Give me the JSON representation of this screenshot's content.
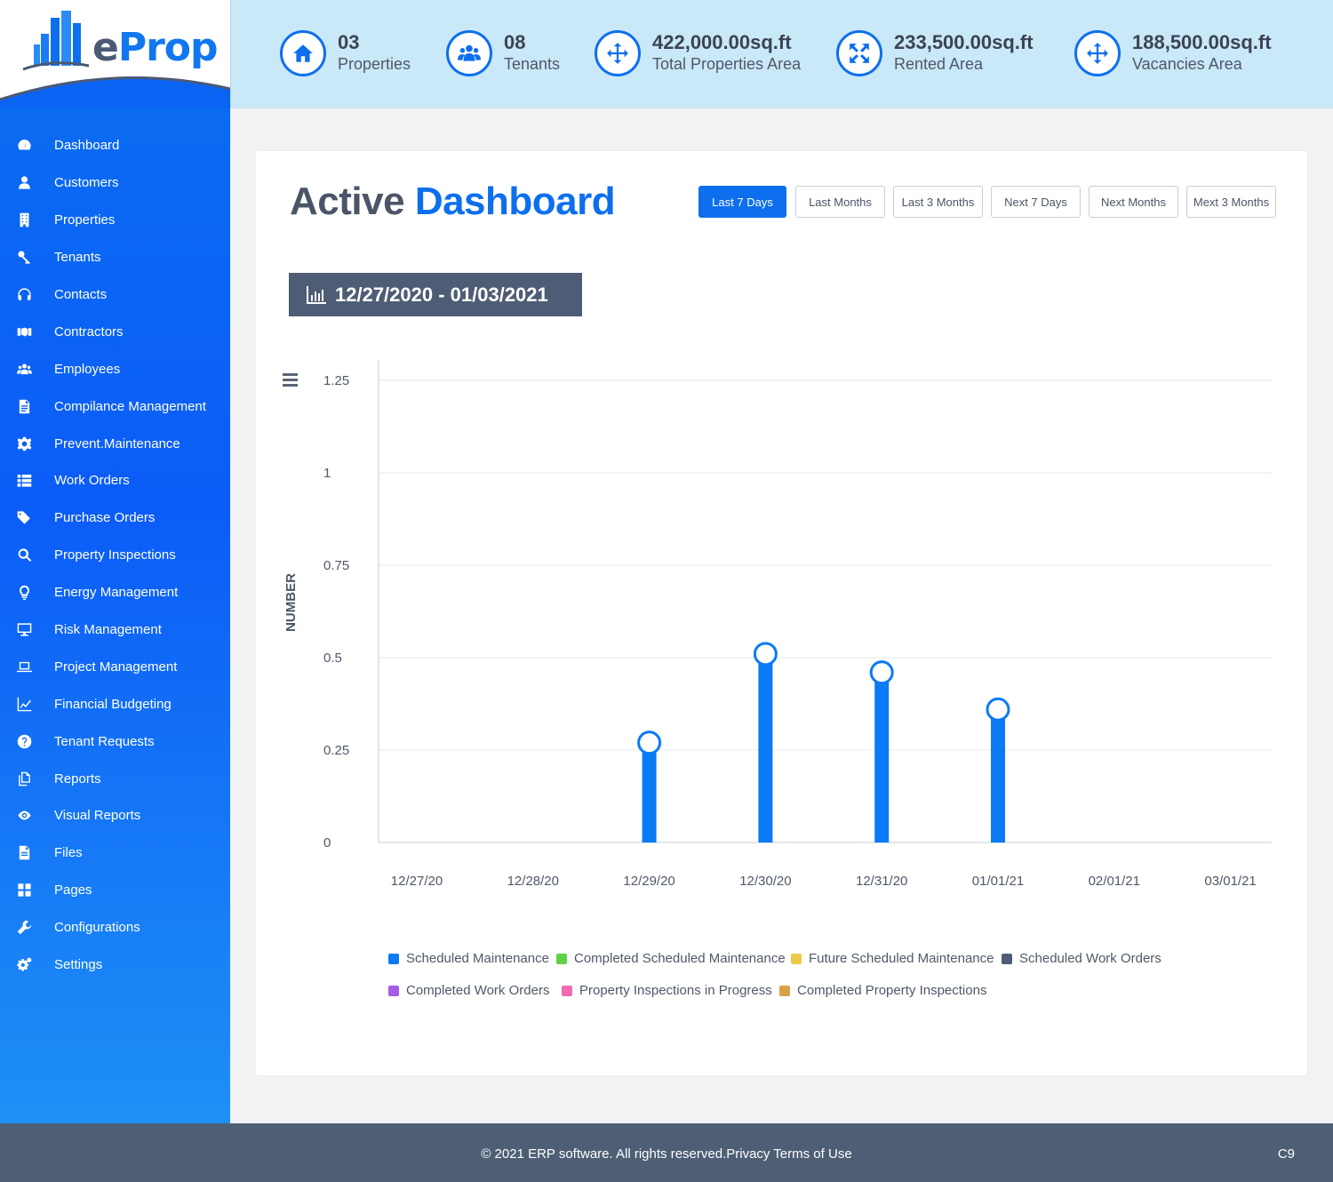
{
  "brand": {
    "logo_e": "e",
    "logo_rest": "Prop"
  },
  "sidebar": {
    "items": [
      {
        "label": "Dashboard",
        "icon": "dashboard-icon"
      },
      {
        "label": "Customers",
        "icon": "user-icon"
      },
      {
        "label": "Properties",
        "icon": "building-icon"
      },
      {
        "label": "Tenants",
        "icon": "key-icon"
      },
      {
        "label": "Contacts",
        "icon": "headset-icon"
      },
      {
        "label": "Contractors",
        "icon": "handshake-icon"
      },
      {
        "label": "Employees",
        "icon": "users-icon"
      },
      {
        "label": "Compilance Management",
        "icon": "document-icon"
      },
      {
        "label": "Prevent.Maintenance",
        "icon": "gear-icon"
      },
      {
        "label": "Work Orders",
        "icon": "list-icon"
      },
      {
        "label": "Purchase Orders",
        "icon": "tags-icon"
      },
      {
        "label": "Property Inspections",
        "icon": "search-icon"
      },
      {
        "label": "Energy Management",
        "icon": "lightbulb-icon"
      },
      {
        "label": "Risk Management",
        "icon": "monitor-icon"
      },
      {
        "label": "Project Management",
        "icon": "laptop-icon"
      },
      {
        "label": "Financial Budgeting",
        "icon": "line-chart-icon"
      },
      {
        "label": "Tenant Requests",
        "icon": "question-icon"
      },
      {
        "label": "Reports",
        "icon": "copy-icon"
      },
      {
        "label": "Visual Reports",
        "icon": "eye-icon"
      },
      {
        "label": "Files",
        "icon": "file-icon"
      },
      {
        "label": "Pages",
        "icon": "grid-icon"
      },
      {
        "label": "Configurations",
        "icon": "wrench-icon"
      },
      {
        "label": "Settings",
        "icon": "cogs-icon"
      }
    ]
  },
  "stats": [
    {
      "value": "03",
      "label": "Properties",
      "icon": "home-icon"
    },
    {
      "value": "08",
      "label": "Tenants",
      "icon": "users-icon"
    },
    {
      "value": "422,000.00sq.ft",
      "label": "Total Properties Area",
      "icon": "move-icon"
    },
    {
      "value": "233,500.00sq.ft",
      "label": "Rented Area",
      "icon": "expand-icon"
    },
    {
      "value": "188,500.00sq.ft",
      "label": "Vacancies Area",
      "icon": "move-icon"
    }
  ],
  "dashboard": {
    "title_part1": "Active",
    "title_part2": "Dashboard",
    "ranges": [
      {
        "label": "Last 7 Days",
        "active": true
      },
      {
        "label": "Last Months",
        "active": false
      },
      {
        "label": "Last 3 Months",
        "active": false
      },
      {
        "label": "Next 7 Days",
        "active": false
      },
      {
        "label": "Next Months",
        "active": false
      },
      {
        "label": "Mext 3 Months",
        "active": false
      }
    ],
    "date_range": "12/27/2020 - 01/03/2021"
  },
  "colors": {
    "accent": "#0d6fed",
    "series_primary": "#0a7af5"
  },
  "chart_data": {
    "type": "bar",
    "ylabel": "NUMBER",
    "xlabel": "",
    "ylim": [
      0,
      1.25
    ],
    "yticks": [
      "0",
      "0.25",
      "0.5",
      "0.75",
      "1",
      "1.25"
    ],
    "categories": [
      "12/27/20",
      "12/28/20",
      "12/29/20",
      "12/30/20",
      "12/31/20",
      "01/01/21",
      "02/01/21",
      "03/01/21"
    ],
    "series": [
      {
        "name": "Scheduled Maintenance",
        "color": "#0a7af5",
        "values": [
          0,
          0,
          0.27,
          0.51,
          0.46,
          0.36,
          0,
          0
        ]
      }
    ],
    "legend": [
      {
        "name": "Scheduled Maintenance",
        "color": "#0a7af5"
      },
      {
        "name": "Completed Scheduled Maintenance",
        "color": "#5fd146"
      },
      {
        "name": "Future Scheduled Maintenance",
        "color": "#ecc94b"
      },
      {
        "name": "Scheduled Work Orders",
        "color": "#4e5d75"
      },
      {
        "name": "Completed Work Orders",
        "color": "#a45ee5"
      },
      {
        "name": "Property Inspections in Progress",
        "color": "#f06bb0"
      },
      {
        "name": "Completed Property Inspections",
        "color": "#d9a24a"
      }
    ],
    "grid": true,
    "legend_position": "bottom"
  },
  "footer": {
    "text": "© 2021 ERP software. All rights reserved.Privacy Terms of Use",
    "code": "C9"
  }
}
